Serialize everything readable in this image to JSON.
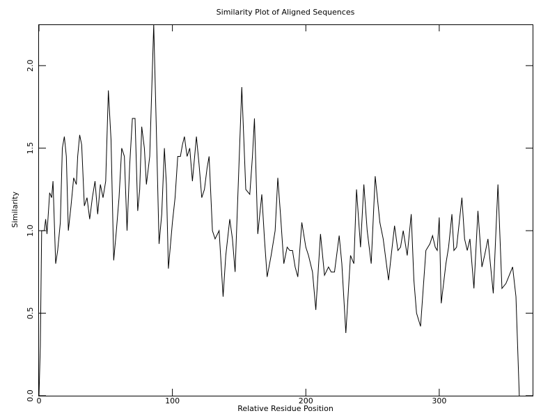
{
  "chart_data": {
    "type": "line",
    "title": "Similarity Plot of Aligned Sequences",
    "xlabel": "Relative Residue Position",
    "ylabel": "Similarity",
    "color": "#000000",
    "xlim": [
      0,
      370
    ],
    "ylim": [
      0,
      2.25
    ],
    "xticks": [
      0,
      100,
      200,
      300
    ],
    "yticks": [
      {
        "value": 0,
        "label": "0.0"
      },
      {
        "value": 0.5,
        "label": "0.5"
      },
      {
        "value": 1,
        "label": "1.0"
      },
      {
        "value": 1.5,
        "label": "1.5"
      },
      {
        "value": 2,
        "label": "2.0"
      }
    ],
    "x": [
      0,
      1,
      2,
      4,
      5,
      6,
      8,
      9.5,
      10.5,
      12.5,
      14,
      16,
      17.5,
      19,
      20.5,
      22,
      24,
      26,
      28,
      29,
      30.5,
      32,
      34,
      36,
      38,
      40,
      42,
      44,
      46,
      48,
      50,
      52,
      54,
      56,
      58,
      60,
      62,
      64,
      66,
      68,
      70,
      72,
      74,
      75.5,
      77,
      79,
      80.5,
      83,
      86,
      88,
      90,
      92,
      94,
      95.5,
      97,
      100,
      102,
      104,
      106,
      107.5,
      109,
      111,
      113,
      115,
      118,
      120,
      122,
      124,
      126,
      127.5,
      130,
      132,
      135,
      138,
      140,
      143,
      145,
      147,
      149,
      152,
      155,
      158,
      160,
      161.5,
      164,
      167,
      169,
      171,
      174,
      177,
      179,
      181,
      183.5,
      186,
      188,
      190,
      192,
      194,
      197,
      200,
      202,
      205,
      207.5,
      211,
      214,
      217,
      219,
      221.5,
      225,
      227,
      230,
      233.5,
      236,
      238,
      241,
      243.5,
      246,
      249,
      252,
      255.5,
      258,
      262,
      264,
      266.5,
      269,
      271,
      273,
      276,
      279,
      281,
      283,
      286,
      288,
      290,
      293,
      295,
      297,
      298.5,
      300,
      301.5,
      305,
      307,
      309.5,
      311,
      313,
      315,
      317,
      319,
      321,
      323,
      326,
      329,
      332,
      334,
      336.5,
      340.5,
      344,
      347,
      350,
      352,
      355,
      357.5,
      360
    ],
    "values": [
      0.0,
      0.3,
      1.0,
      1.0,
      1.07,
      0.98,
      1.23,
      1.2,
      1.3,
      0.8,
      0.88,
      1.05,
      1.5,
      1.57,
      1.45,
      1.0,
      1.15,
      1.32,
      1.28,
      1.45,
      1.58,
      1.52,
      1.15,
      1.2,
      1.07,
      1.2,
      1.3,
      1.1,
      1.28,
      1.2,
      1.3,
      1.85,
      1.55,
      0.82,
      1.0,
      1.2,
      1.5,
      1.45,
      1.0,
      1.4,
      1.68,
      1.68,
      1.12,
      1.25,
      1.63,
      1.5,
      1.28,
      1.45,
      2.25,
      1.6,
      0.92,
      1.1,
      1.5,
      1.28,
      0.77,
      1.05,
      1.2,
      1.45,
      1.45,
      1.52,
      1.57,
      1.45,
      1.5,
      1.3,
      1.57,
      1.4,
      1.2,
      1.25,
      1.38,
      1.45,
      1.0,
      0.95,
      1.0,
      0.6,
      0.85,
      1.07,
      0.95,
      0.75,
      1.2,
      1.87,
      1.25,
      1.22,
      1.45,
      1.68,
      0.98,
      1.22,
      0.95,
      0.72,
      0.85,
      1.0,
      1.32,
      1.1,
      0.8,
      0.9,
      0.88,
      0.88,
      0.78,
      0.72,
      1.05,
      0.9,
      0.85,
      0.75,
      0.52,
      0.98,
      0.73,
      0.78,
      0.75,
      0.75,
      0.97,
      0.8,
      0.38,
      0.85,
      0.8,
      1.25,
      0.9,
      1.28,
      1.0,
      0.8,
      1.33,
      1.05,
      0.95,
      0.7,
      0.85,
      1.03,
      0.88,
      0.9,
      1.0,
      0.85,
      1.1,
      0.7,
      0.5,
      0.42,
      0.65,
      0.88,
      0.92,
      0.97,
      0.9,
      0.88,
      1.08,
      0.56,
      0.8,
      0.9,
      1.1,
      0.88,
      0.9,
      1.05,
      1.2,
      0.95,
      0.88,
      0.95,
      0.65,
      1.12,
      0.78,
      0.85,
      0.95,
      0.62,
      1.28,
      0.65,
      0.68,
      0.72,
      0.78,
      0.6,
      0.0
    ]
  }
}
